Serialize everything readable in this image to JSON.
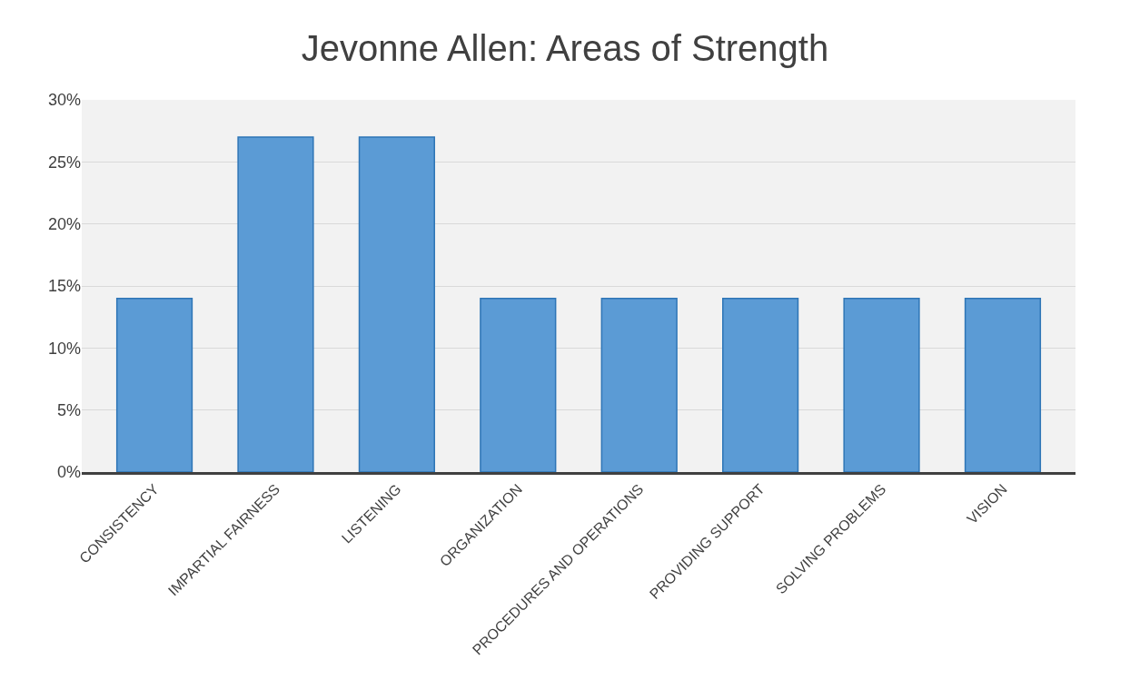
{
  "chart_data": {
    "type": "bar",
    "title": "Jevonne Allen: Areas of Strength",
    "categories": [
      "CONSISTENCY",
      "IMPARTIAL FAIRNESS",
      "LISTENING",
      "ORGANIZATION",
      "PROCEDURES AND OPERATIONS",
      "PROVIDING SUPPORT",
      "SOLVING PROBLEMS",
      "VISION"
    ],
    "values": [
      14,
      27,
      27,
      14,
      14,
      14,
      14,
      14
    ],
    "color": "#5b9bd5",
    "ylim": [
      0,
      30
    ],
    "yticks": [
      {
        "value": 0,
        "label": "0%"
      },
      {
        "value": 5,
        "label": "5%"
      },
      {
        "value": 10,
        "label": "10%"
      },
      {
        "value": 15,
        "label": "15%"
      },
      {
        "value": 20,
        "label": "20%"
      },
      {
        "value": 25,
        "label": "25%"
      },
      {
        "value": 30,
        "label": "30%"
      }
    ],
    "grid": "y"
  }
}
